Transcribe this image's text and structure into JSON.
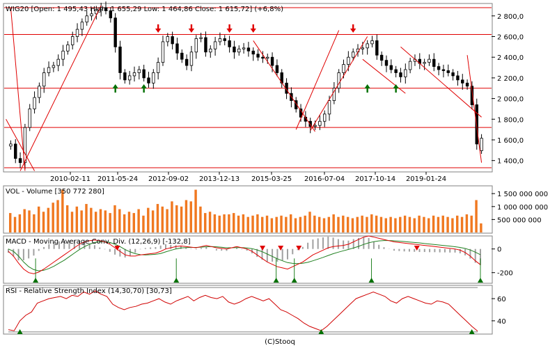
{
  "footer": "(C)Stooq",
  "colors": {
    "candle_up": "#ffffff",
    "candle_down": "#000000",
    "trendline": "#e00000",
    "volume_bar": "#f07820",
    "macd_line": "#e00000",
    "signal_line": "#208020",
    "histogram": "#a0a0a0",
    "buy_arrow": "#007000",
    "sell_arrow": "#e00000",
    "rsi_line": "#d00000"
  },
  "chart_data": [
    {
      "type": "candlestick",
      "title": "WIG20 [Open: 1 495,43  High: 1 655,29  Low: 1 464,86  Close: 1 615,72] (+6,8%)",
      "x_ticks": [
        "2010-02-11",
        "2011-05-24",
        "2012-09-02",
        "2013-12-13",
        "2015-03-25",
        "2016-07-04",
        "2017-10-14",
        "2019-01-24"
      ],
      "y_ticks": [
        "2 800,0",
        "2 600,0",
        "2 400,0",
        "2 200,0",
        "2 000,0",
        "1 800,0",
        "1 600,0",
        "1 400,0"
      ],
      "y_tick_values": [
        2800,
        2600,
        2400,
        2200,
        2000,
        1800,
        1600,
        1400
      ],
      "ylim": [
        1290,
        2920
      ],
      "last_bar": {
        "open": 1495.43,
        "high": 1655.29,
        "low": 1464.86,
        "close": 1615.72
      },
      "closes": [
        1560,
        1420,
        1380,
        1720,
        1900,
        2010,
        2120,
        2250,
        2300,
        2320,
        2380,
        2460,
        2520,
        2600,
        2670,
        2740,
        2800,
        2820,
        2860,
        2880,
        2850,
        2780,
        2500,
        2250,
        2180,
        2220,
        2250,
        2280,
        2200,
        2150,
        2250,
        2350,
        2550,
        2600,
        2530,
        2440,
        2380,
        2320,
        2450,
        2580,
        2590,
        2450,
        2480,
        2550,
        2580,
        2560,
        2500,
        2450,
        2480,
        2490,
        2460,
        2430,
        2400,
        2390,
        2400,
        2320,
        2250,
        2150,
        2050,
        1980,
        1900,
        1820,
        1780,
        1730,
        1740,
        1780,
        1850,
        1980,
        2100,
        2250,
        2330,
        2400,
        2450,
        2480,
        2490,
        2530,
        2560,
        2420,
        2370,
        2320,
        2280,
        2250,
        2210,
        2280,
        2360,
        2380,
        2340,
        2350,
        2380,
        2310,
        2280,
        2270,
        2250,
        2220,
        2180,
        2150,
        2120,
        1940,
        1560,
        1615
      ],
      "horizontal_levels": [
        2880,
        2620,
        2100,
        1720,
        1330
      ],
      "sell_arrows_at": [
        31,
        38,
        46,
        51,
        72
      ],
      "buy_arrows_at": [
        22,
        28,
        75,
        81
      ]
    },
    {
      "type": "bar",
      "title": "VOL - Volume [350 772 280]",
      "y_ticks": [
        "1 500 000 000",
        "1 000 000 000",
        "500 000 000"
      ],
      "y_tick_values": [
        1500000000,
        1000000000,
        500000000
      ],
      "ylim": [
        0,
        1800000000
      ],
      "values_millions": [
        750,
        600,
        700,
        900,
        850,
        700,
        1000,
        800,
        950,
        1150,
        1250,
        1650,
        1050,
        800,
        1000,
        850,
        1100,
        950,
        800,
        900,
        850,
        750,
        1050,
        900,
        700,
        800,
        750,
        900,
        650,
        950,
        850,
        1100,
        1000,
        900,
        1200,
        1050,
        1000,
        1250,
        1200,
        1650,
        1000,
        750,
        800,
        700,
        650,
        700,
        700,
        750,
        650,
        700,
        600,
        650,
        700,
        600,
        650,
        550,
        600,
        650,
        600,
        700,
        550,
        600,
        650,
        800,
        650,
        600,
        550,
        600,
        700,
        600,
        650,
        600,
        550,
        600,
        650,
        600,
        700,
        650,
        600,
        550,
        600,
        550,
        600,
        650,
        600,
        550,
        650,
        600,
        550,
        650,
        600,
        650,
        600,
        550,
        650,
        600,
        700,
        650,
        1250,
        350
      ]
    },
    {
      "type": "line",
      "title": "MACD - Moving Average Conv. Div. (12,26,9) [-132,8]",
      "y_ticks": [
        "0",
        "-200"
      ],
      "y_tick_values": [
        0,
        -200
      ],
      "ylim": [
        -290,
        110
      ],
      "macd": [
        -20,
        -60,
        -120,
        -170,
        -200,
        -210,
        -195,
        -170,
        -140,
        -110,
        -80,
        -50,
        -20,
        10,
        40,
        60,
        70,
        75,
        70,
        60,
        40,
        10,
        -20,
        -50,
        -60,
        -60,
        -50,
        -45,
        -40,
        -35,
        -20,
        0,
        10,
        20,
        25,
        20,
        15,
        10,
        20,
        30,
        20,
        10,
        5,
        0,
        10,
        20,
        10,
        0,
        -20,
        -50,
        -80,
        -110,
        -130,
        -150,
        -160,
        -170,
        -150,
        -130,
        -110,
        -80,
        -50,
        -30,
        -10,
        10,
        20,
        25,
        30,
        40,
        60,
        80,
        100,
        110,
        100,
        90,
        80,
        70,
        60,
        55,
        50,
        45,
        40,
        35,
        30,
        25,
        20,
        15,
        10,
        5,
        0,
        -10,
        -30,
        -60,
        -100,
        -132.8
      ],
      "signal": [
        0,
        -20,
        -60,
        -110,
        -150,
        -175,
        -185,
        -180,
        -165,
        -145,
        -120,
        -95,
        -65,
        -35,
        -5,
        20,
        40,
        55,
        62,
        62,
        55,
        40,
        20,
        -5,
        -25,
        -40,
        -48,
        -50,
        -48,
        -45,
        -38,
        -25,
        -12,
        0,
        8,
        12,
        13,
        13,
        15,
        19,
        20,
        18,
        14,
        10,
        10,
        12,
        12,
        9,
        3,
        -8,
        -23,
        -43,
        -63,
        -83,
        -100,
        -115,
        -122,
        -124,
        -121,
        -113,
        -100,
        -86,
        -71,
        -55,
        -40,
        -27,
        -15,
        -4,
        8,
        22,
        38,
        52,
        62,
        68,
        71,
        71,
        69,
        66,
        63,
        59,
        55,
        51,
        46,
        42,
        37,
        33,
        28,
        24,
        19,
        13,
        4,
        -9,
        -27,
        -48
      ],
      "buy_markers_at": [
        6,
        37,
        59,
        63,
        80,
        104
      ],
      "sell_markers_at": [
        24,
        56,
        60,
        64,
        90
      ]
    },
    {
      "type": "line",
      "title": "RSI - Relative Strength Index (14,30,70) [30,73]",
      "y_ticks": [
        "60",
        "40"
      ],
      "y_tick_values": [
        60,
        40
      ],
      "ylim": [
        28,
        72
      ],
      "upper_band": 70,
      "lower_band": 30,
      "values": [
        32,
        31,
        40,
        45,
        48,
        56,
        58,
        60,
        61,
        62,
        60,
        63,
        62,
        66,
        64,
        67,
        64,
        62,
        55,
        52,
        50,
        52,
        53,
        55,
        56,
        58,
        60,
        57,
        55,
        58,
        60,
        62,
        58,
        61,
        63,
        61,
        60,
        62,
        57,
        55,
        57,
        60,
        62,
        60,
        58,
        60,
        55,
        50,
        48,
        45,
        42,
        38,
        35,
        33,
        31,
        35,
        40,
        45,
        50,
        55,
        60,
        62,
        64,
        66,
        64,
        62,
        58,
        56,
        60,
        62,
        60,
        58,
        56,
        55,
        58,
        57,
        55,
        50,
        45,
        40,
        35,
        30.73
      ]
    }
  ]
}
